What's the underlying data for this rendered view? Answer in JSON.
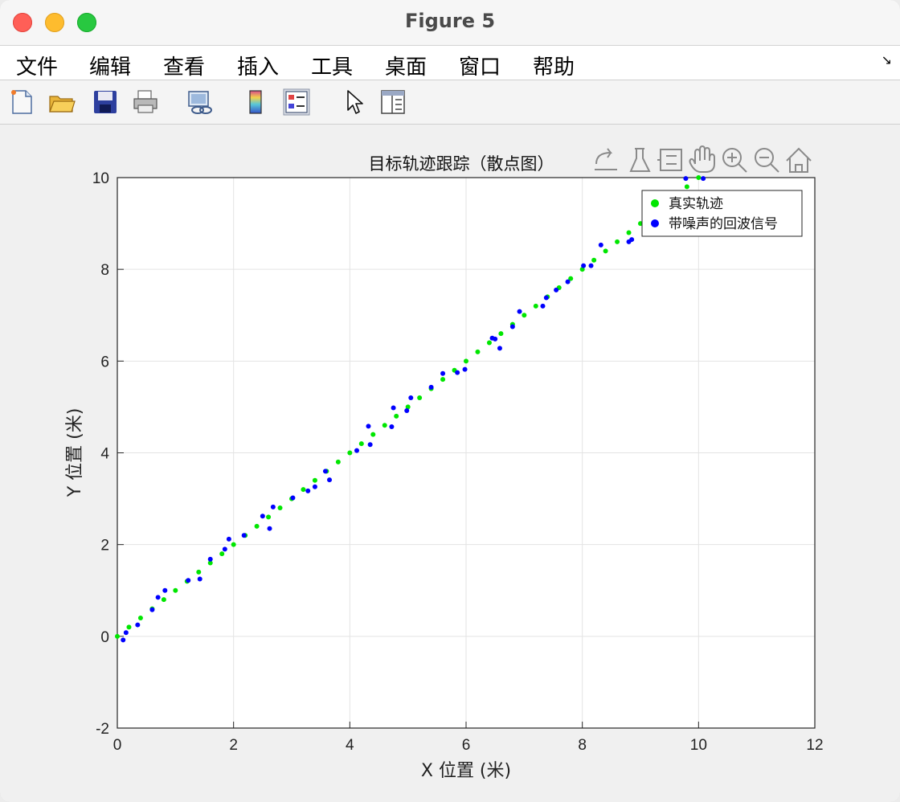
{
  "window": {
    "title": "Figure 5"
  },
  "menu": [
    "文件",
    "编辑",
    "查看",
    "插入",
    "工具",
    "桌面",
    "窗口",
    "帮助"
  ],
  "menu_overflow_icon": "arrow-icon",
  "toolbar": [
    "new-figure-icon",
    "open-file-icon",
    "save-icon",
    "print-icon",
    "link-icon",
    "colorbar-icon",
    "legend-icon",
    "pointer-icon",
    "property-editor-icon"
  ],
  "axes_toolbar": [
    "export-icon",
    "brush-icon",
    "data-tip-icon",
    "pan-icon",
    "zoom-in-icon",
    "zoom-out-icon",
    "home-icon"
  ],
  "colors": {
    "true_series": "#00e600",
    "noisy_series": "#0000ff"
  },
  "chart_data": {
    "type": "scatter",
    "title": "目标轨迹跟踪（散点图）",
    "xlabel": "X 位置 (米)",
    "ylabel": "Y 位置 (米)",
    "xlim": [
      0,
      12
    ],
    "ylim": [
      -2,
      10
    ],
    "xticks": [
      "0",
      "2",
      "4",
      "6",
      "8",
      "10",
      "12"
    ],
    "yticks": [
      "-2",
      "0",
      "2",
      "4",
      "6",
      "8",
      "10"
    ],
    "grid": true,
    "legend_position": "top-right",
    "series": [
      {
        "name": "真实轨迹",
        "color": "#00e600",
        "x": [
          0,
          0.2,
          0.4,
          0.6,
          0.8,
          1.0,
          1.2,
          1.4,
          1.6,
          1.8,
          2.0,
          2.2,
          2.4,
          2.6,
          2.8,
          3.0,
          3.2,
          3.4,
          3.6,
          3.8,
          4.0,
          4.2,
          4.4,
          4.6,
          4.8,
          5.0,
          5.2,
          5.4,
          5.6,
          5.8,
          6.0,
          6.2,
          6.4,
          6.6,
          6.8,
          7.0,
          7.2,
          7.4,
          7.6,
          7.8,
          8.0,
          8.2,
          8.4,
          8.6,
          8.8,
          9.0,
          9.2,
          9.4,
          9.6,
          9.8,
          10.0
        ],
        "y": [
          0,
          0.2,
          0.4,
          0.6,
          0.8,
          1.0,
          1.2,
          1.4,
          1.6,
          1.8,
          2.0,
          2.2,
          2.4,
          2.6,
          2.8,
          3.0,
          3.2,
          3.4,
          3.6,
          3.8,
          4.0,
          4.2,
          4.4,
          4.6,
          4.8,
          5.0,
          5.2,
          5.4,
          5.6,
          5.8,
          6.0,
          6.2,
          6.4,
          6.6,
          6.8,
          7.0,
          7.2,
          7.4,
          7.6,
          7.8,
          8.0,
          8.2,
          8.4,
          8.6,
          8.8,
          9.0,
          9.2,
          9.4,
          9.6,
          9.8,
          10.0
        ]
      },
      {
        "name": "带噪声的回波信号",
        "color": "#0000ff",
        "x": [
          0.1,
          0.15,
          0.35,
          0.6,
          0.7,
          0.82,
          1.22,
          1.42,
          1.6,
          1.85,
          1.92,
          2.18,
          2.5,
          2.62,
          2.68,
          3.02,
          3.28,
          3.4,
          3.58,
          3.65,
          4.12,
          4.32,
          4.35,
          4.72,
          4.75,
          4.98,
          5.05,
          5.4,
          5.6,
          5.85,
          5.98,
          6.45,
          6.5,
          6.58,
          6.8,
          6.92,
          7.32,
          7.38,
          7.55,
          7.75,
          8.02,
          8.15,
          8.32,
          8.8,
          8.85,
          9.78,
          10.08
        ],
        "y": [
          -0.08,
          0.08,
          0.25,
          0.58,
          0.85,
          1.0,
          1.22,
          1.25,
          1.68,
          1.9,
          2.12,
          2.2,
          2.62,
          2.35,
          2.82,
          3.02,
          3.17,
          3.26,
          3.6,
          3.41,
          4.05,
          4.58,
          4.18,
          4.57,
          4.98,
          4.92,
          5.2,
          5.43,
          5.73,
          5.75,
          5.82,
          6.5,
          6.48,
          6.28,
          6.75,
          7.08,
          7.2,
          7.38,
          7.55,
          7.73,
          8.08,
          8.08,
          8.53,
          8.6,
          8.65,
          9.98,
          9.98
        ]
      }
    ]
  }
}
